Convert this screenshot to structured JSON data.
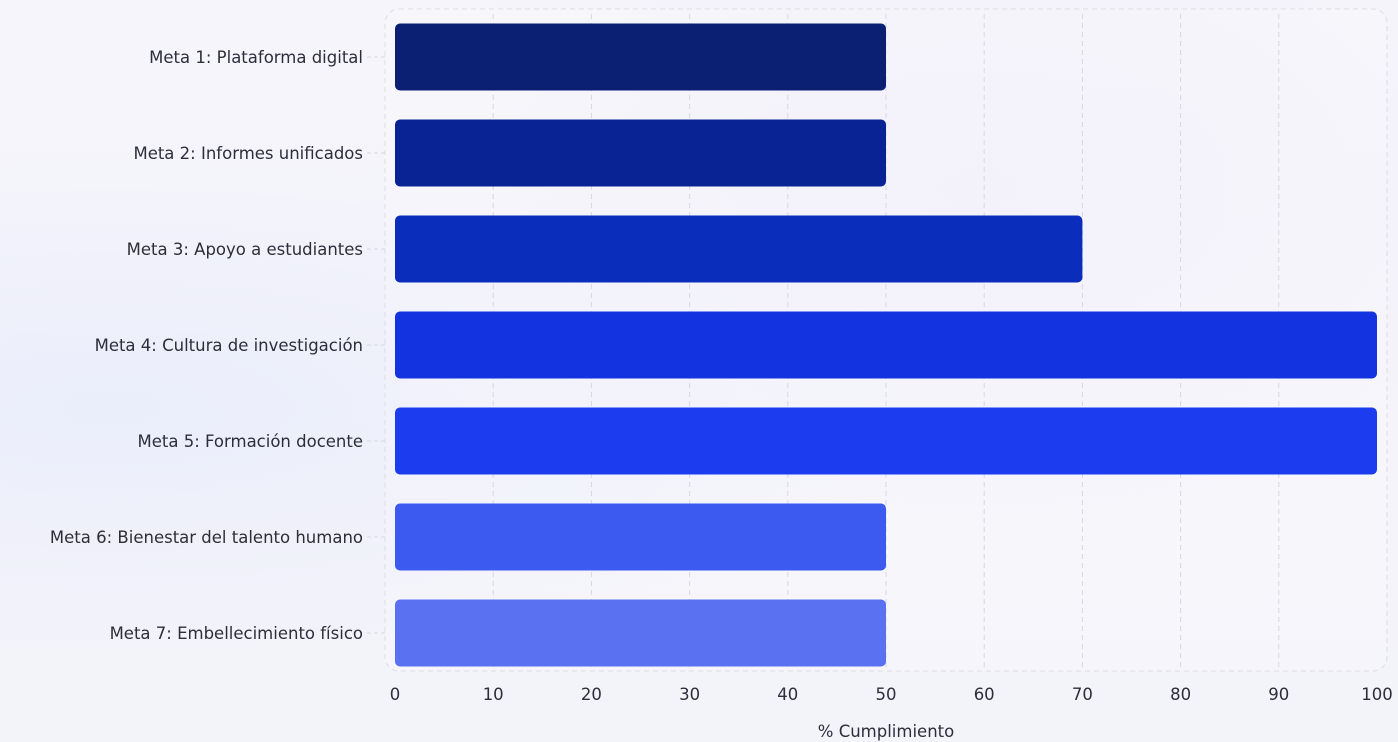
{
  "chart_data": {
    "type": "bar",
    "orientation": "horizontal",
    "categories": [
      "Meta 1: Plataforma digital",
      "Meta 2: Informes unificados",
      "Meta 3: Apoyo a estudiantes",
      "Meta 4: Cultura de investigación",
      "Meta 5: Formación docente",
      "Meta 6: Bienestar del talento humano",
      "Meta 7: Embellecimiento físico"
    ],
    "values": [
      50,
      50,
      70,
      100,
      100,
      50,
      50
    ],
    "bar_colors": [
      "#0b1f73",
      "#0a2394",
      "#0b2dbc",
      "#1333e0",
      "#1c3cf0",
      "#3c5af0",
      "#5a72f2"
    ],
    "xlabel": "% Cumplimiento",
    "ylabel": "",
    "title": "",
    "xlim": [
      0,
      100
    ],
    "xticks": [
      0,
      10,
      20,
      30,
      40,
      50,
      60,
      70,
      80,
      90,
      100
    ],
    "grid": "vertical dashed",
    "legend": "none"
  }
}
